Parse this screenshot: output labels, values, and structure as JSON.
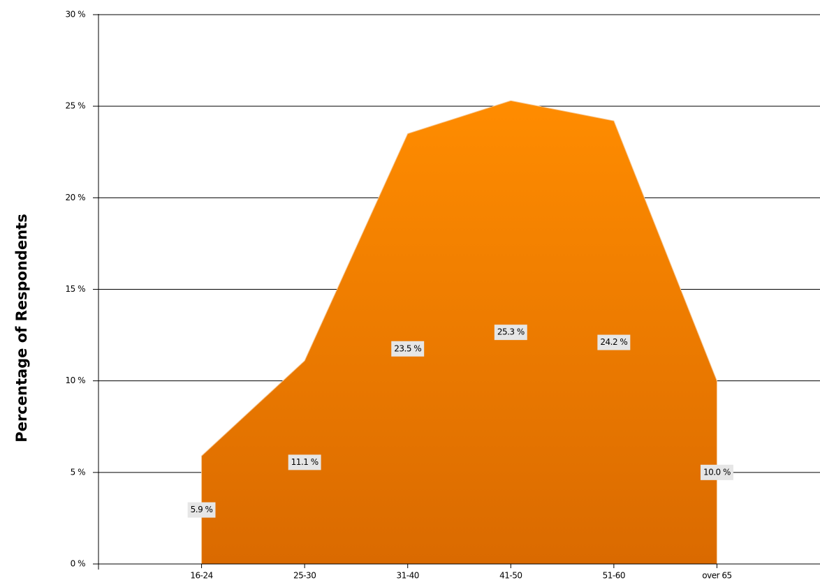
{
  "chart_data": {
    "type": "area",
    "y_label": "Percentage of Respondents",
    "categories": [
      "16-24",
      "25-30",
      "31-40",
      "41-50",
      "51-60",
      "over 65"
    ],
    "values": [
      5.9,
      11.1,
      23.5,
      25.3,
      24.2,
      10.0
    ],
    "value_labels": [
      "5.9 %",
      "11.1 %",
      "23.5 %",
      "25.3 %",
      "24.2 %",
      "10.0 %"
    ],
    "color": "#f98a00",
    "ylim": [
      0,
      30
    ],
    "yticks": [
      {
        "value": 0,
        "label": "0 %"
      },
      {
        "value": 5,
        "label": "5 %"
      },
      {
        "value": 10,
        "label": "10 %"
      },
      {
        "value": 15,
        "label": "15 %"
      },
      {
        "value": 20,
        "label": "20 %"
      },
      {
        "value": 25,
        "label": "25 %"
      },
      {
        "value": 30,
        "label": "30 %"
      }
    ],
    "grid": true
  }
}
